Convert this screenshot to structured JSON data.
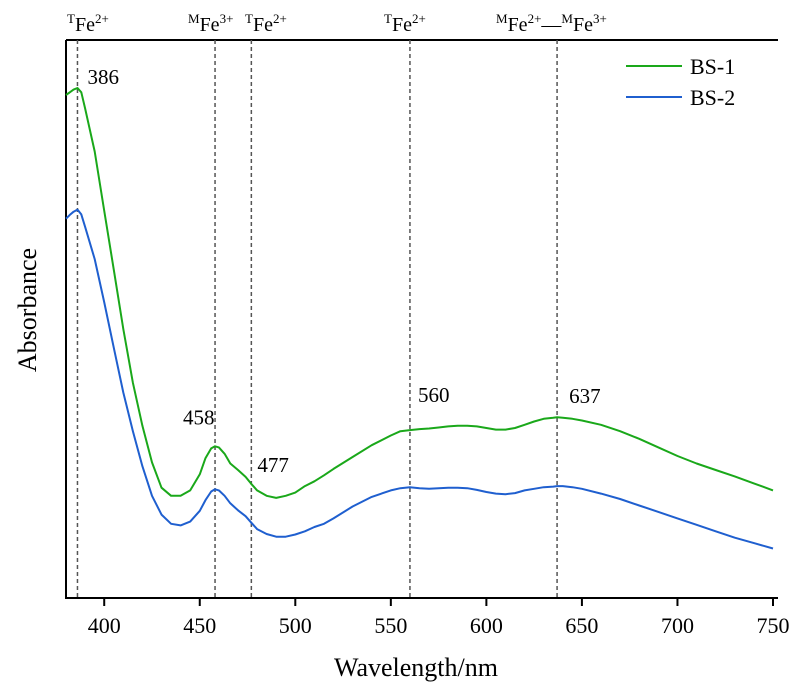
{
  "chart_data": {
    "type": "line",
    "xlabel": "Wavelength/nm",
    "ylabel": "Absorbance",
    "xlim": [
      380,
      750
    ],
    "ylim": [
      0,
      1
    ],
    "x_ticks": [
      400,
      450,
      500,
      550,
      600,
      650,
      700,
      750
    ],
    "grid": false,
    "legend": "top-right",
    "series": [
      {
        "name": "BS-1",
        "color": "#1aa81a",
        "x": [
          380,
          382,
          384,
          386,
          388,
          390,
          395,
          400,
          405,
          410,
          415,
          420,
          425,
          430,
          435,
          440,
          445,
          450,
          453,
          456,
          458,
          460,
          463,
          466,
          470,
          474,
          477,
          480,
          485,
          490,
          495,
          500,
          505,
          510,
          515,
          520,
          530,
          540,
          550,
          555,
          560,
          565,
          570,
          575,
          580,
          585,
          590,
          595,
          600,
          605,
          610,
          615,
          620,
          625,
          630,
          635,
          637,
          640,
          645,
          650,
          660,
          670,
          680,
          690,
          700,
          710,
          720,
          730,
          740,
          750
        ],
        "y": [
          0.935,
          0.94,
          0.945,
          0.948,
          0.94,
          0.91,
          0.83,
          0.72,
          0.61,
          0.5,
          0.4,
          0.32,
          0.252,
          0.205,
          0.19,
          0.19,
          0.2,
          0.23,
          0.26,
          0.278,
          0.282,
          0.28,
          0.268,
          0.25,
          0.238,
          0.225,
          0.212,
          0.2,
          0.19,
          0.186,
          0.19,
          0.196,
          0.208,
          0.217,
          0.228,
          0.24,
          0.262,
          0.284,
          0.302,
          0.31,
          0.312,
          0.314,
          0.315,
          0.317,
          0.319,
          0.32,
          0.32,
          0.319,
          0.316,
          0.313,
          0.313,
          0.316,
          0.322,
          0.328,
          0.333,
          0.335,
          0.336,
          0.335,
          0.333,
          0.33,
          0.322,
          0.31,
          0.296,
          0.28,
          0.264,
          0.25,
          0.238,
          0.226,
          0.213,
          0.2
        ]
      },
      {
        "name": "BS-2",
        "color": "#1f5fcf",
        "x": [
          380,
          382,
          384,
          386,
          388,
          390,
          395,
          400,
          405,
          410,
          415,
          420,
          425,
          430,
          435,
          440,
          445,
          450,
          453,
          456,
          458,
          460,
          463,
          466,
          470,
          474,
          477,
          480,
          485,
          490,
          495,
          500,
          505,
          510,
          515,
          520,
          530,
          540,
          550,
          555,
          560,
          565,
          570,
          575,
          580,
          585,
          590,
          595,
          600,
          605,
          610,
          615,
          620,
          625,
          630,
          635,
          637,
          640,
          645,
          650,
          660,
          670,
          680,
          690,
          700,
          710,
          720,
          730,
          740,
          750
        ],
        "y": [
          0.705,
          0.712,
          0.718,
          0.722,
          0.713,
          0.69,
          0.63,
          0.55,
          0.465,
          0.382,
          0.31,
          0.245,
          0.19,
          0.155,
          0.138,
          0.135,
          0.142,
          0.162,
          0.182,
          0.198,
          0.202,
          0.2,
          0.19,
          0.176,
          0.163,
          0.152,
          0.14,
          0.128,
          0.119,
          0.114,
          0.114,
          0.118,
          0.124,
          0.132,
          0.138,
          0.148,
          0.17,
          0.188,
          0.2,
          0.204,
          0.206,
          0.204,
          0.203,
          0.204,
          0.205,
          0.205,
          0.204,
          0.201,
          0.197,
          0.194,
          0.193,
          0.195,
          0.2,
          0.203,
          0.206,
          0.207,
          0.208,
          0.208,
          0.206,
          0.203,
          0.194,
          0.184,
          0.172,
          0.16,
          0.148,
          0.136,
          0.124,
          0.112,
          0.102,
          0.092
        ]
      }
    ],
    "peaks": [
      {
        "x": 386,
        "label": "386"
      },
      {
        "x": 458,
        "label": "458"
      },
      {
        "x": 477,
        "label": "477"
      },
      {
        "x": 560,
        "label": "560"
      },
      {
        "x": 637,
        "label": "637"
      }
    ],
    "band_labels": [
      {
        "prefix": "T",
        "base": "Fe",
        "charge": "2+"
      },
      {
        "prefix": "M",
        "base": "Fe",
        "charge": "3+"
      },
      {
        "prefix": "T",
        "base": "Fe",
        "charge": "2+"
      },
      {
        "prefix": "T",
        "base": "Fe",
        "charge": "2+"
      },
      {
        "prefix": "M",
        "base": "Fe",
        "charge": "2+",
        "joiner": "—",
        "prefix2": "M",
        "base2": "Fe",
        "charge2": "3+"
      }
    ]
  }
}
